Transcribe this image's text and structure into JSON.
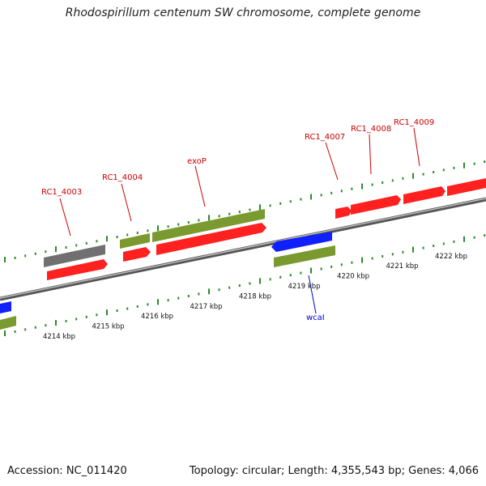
{
  "title": "Rhodospirillum centenum SW chromosome, complete genome",
  "footer": {
    "accession": "Accession: NC_011420",
    "stats": "Topology: circular; Length: 4,355,543 bp; Genes: 4,066"
  },
  "colors": {
    "backbone": "#888888",
    "tick": "#2a8a2a",
    "forward_gene": "#ff2020",
    "forward_gene_green": "#7a9a30",
    "reverse_gene_blue": "#1020ff",
    "gray_gene": "#707070",
    "label_red": "#cc0000",
    "label_blue": "#0000cc"
  },
  "scale_labels": [
    {
      "kbp": 4214,
      "text": "4214 kbp"
    },
    {
      "kbp": 4215,
      "text": "4215 kbp"
    },
    {
      "kbp": 4216,
      "text": "4216 kbp"
    },
    {
      "kbp": 4217,
      "text": "4217 kbp"
    },
    {
      "kbp": 4218,
      "text": "4218 kbp"
    },
    {
      "kbp": 4219,
      "text": "4219 kbp"
    },
    {
      "kbp": 4220,
      "text": "4220 kbp"
    },
    {
      "kbp": 4221,
      "text": "4221 kbp"
    },
    {
      "kbp": 4222,
      "text": "4222 kbp"
    }
  ],
  "gene_labels": [
    {
      "text": "RC1_4003",
      "color": "label_red"
    },
    {
      "text": "RC1_4004",
      "color": "label_red"
    },
    {
      "text": "exoP",
      "color": "label_red"
    },
    {
      "text": "RC1_4007",
      "color": "label_red"
    },
    {
      "text": "RC1_4008",
      "color": "label_red"
    },
    {
      "text": "RC1_4009",
      "color": "label_red"
    },
    {
      "text": "wcaI",
      "color": "label_blue"
    }
  ]
}
